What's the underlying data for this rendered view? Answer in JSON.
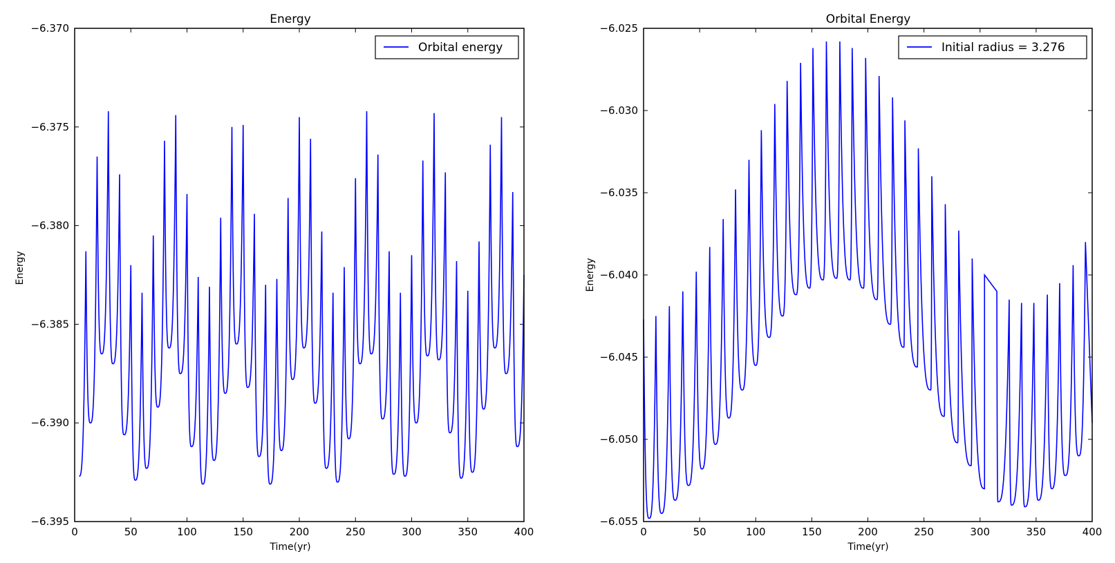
{
  "figure_colors": {
    "series": "#0000ff",
    "axes": "#000000",
    "background": "#ffffff"
  },
  "chart_data": [
    {
      "type": "line",
      "title": "Energy",
      "xlabel": "Time(yr)",
      "ylabel": "Energy",
      "xlim": [
        0,
        400
      ],
      "ylim": [
        -6.395,
        -6.37
      ],
      "xticks": [
        "0",
        "50",
        "100",
        "150",
        "200",
        "250",
        "300",
        "350",
        "400"
      ],
      "yticks": [
        "−6.395",
        "−6.390",
        "−6.385",
        "−6.380",
        "−6.375",
        "−6.370"
      ],
      "legend": {
        "placement": "top-right",
        "entries": [
          "Orbital energy"
        ]
      },
      "grid": false,
      "series": [
        {
          "name": "Orbital energy",
          "color": "#0000ff",
          "troughs": [
            [
              4,
              -6.3927
            ],
            [
              14,
              -6.39
            ],
            [
              24,
              -6.3865
            ],
            [
              34,
              -6.387
            ],
            [
              44,
              -6.3906
            ],
            [
              54,
              -6.3929
            ],
            [
              64,
              -6.3923
            ],
            [
              74,
              -6.3892
            ],
            [
              84,
              -6.3862
            ],
            [
              94,
              -6.3875
            ],
            [
              104,
              -6.3912
            ],
            [
              114,
              -6.3931
            ],
            [
              124,
              -6.3919
            ],
            [
              134,
              -6.3885
            ],
            [
              144,
              -6.386
            ],
            [
              154,
              -6.3882
            ],
            [
              164,
              -6.3917
            ],
            [
              174,
              -6.3931
            ],
            [
              184,
              -6.3914
            ],
            [
              194,
              -6.3878
            ],
            [
              204,
              -6.3862
            ],
            [
              214,
              -6.389
            ],
            [
              224,
              -6.3923
            ],
            [
              234,
              -6.393
            ],
            [
              244,
              -6.3908
            ],
            [
              254,
              -6.387
            ],
            [
              264,
              -6.3865
            ],
            [
              274,
              -6.3898
            ],
            [
              284,
              -6.3926
            ],
            [
              294,
              -6.3927
            ],
            [
              304,
              -6.39
            ],
            [
              314,
              -6.3866
            ],
            [
              324,
              -6.3868
            ],
            [
              334,
              -6.3905
            ],
            [
              344,
              -6.3928
            ],
            [
              354,
              -6.3925
            ],
            [
              364,
              -6.3893
            ],
            [
              374,
              -6.3862
            ],
            [
              384,
              -6.3875
            ],
            [
              394,
              -6.3912
            ]
          ],
          "peaks": [
            [
              10,
              -6.3813
            ],
            [
              20,
              -6.3765
            ],
            [
              30,
              -6.3742
            ],
            [
              40,
              -6.3774
            ],
            [
              50,
              -6.382
            ],
            [
              60,
              -6.3834
            ],
            [
              70,
              -6.3805
            ],
            [
              80,
              -6.3757
            ],
            [
              90,
              -6.3744
            ],
            [
              100,
              -6.3784
            ],
            [
              110,
              -6.3826
            ],
            [
              120,
              -6.3831
            ],
            [
              130,
              -6.3796
            ],
            [
              140,
              -6.375
            ],
            [
              150,
              -6.3749
            ],
            [
              160,
              -6.3794
            ],
            [
              170,
              -6.383
            ],
            [
              180,
              -6.3827
            ],
            [
              190,
              -6.3786
            ],
            [
              200,
              -6.3745
            ],
            [
              210,
              -6.3756
            ],
            [
              220,
              -6.3803
            ],
            [
              230,
              -6.3834
            ],
            [
              240,
              -6.3821
            ],
            [
              250,
              -6.3776
            ],
            [
              260,
              -6.3742
            ],
            [
              270,
              -6.3764
            ],
            [
              280,
              -6.3813
            ],
            [
              290,
              -6.3834
            ],
            [
              300,
              -6.3815
            ],
            [
              310,
              -6.3767
            ],
            [
              320,
              -6.3743
            ],
            [
              330,
              -6.3773
            ],
            [
              340,
              -6.3818
            ],
            [
              350,
              -6.3833
            ],
            [
              360,
              -6.3808
            ],
            [
              370,
              -6.3759
            ],
            [
              380,
              -6.3745
            ],
            [
              390,
              -6.3783
            ],
            [
              400,
              -6.3825
            ]
          ]
        }
      ]
    },
    {
      "type": "line",
      "title": "Orbital Energy",
      "xlabel": "Time(yr)",
      "ylabel": "Energy",
      "xlim": [
        0,
        400
      ],
      "ylim": [
        -6.055,
        -6.025
      ],
      "xticks": [
        "0",
        "50",
        "100",
        "150",
        "200",
        "250",
        "300",
        "350",
        "400"
      ],
      "yticks": [
        "−6.055",
        "−6.050",
        "−6.045",
        "−6.040",
        "−6.035",
        "−6.030",
        "−6.025"
      ],
      "legend": {
        "placement": "top-right",
        "entries": [
          "Initial radius = 3.276"
        ]
      },
      "grid": false,
      "series": [
        {
          "name": "Initial radius = 3.276",
          "color": "#0000ff",
          "troughs": [
            [
              5,
              -6.0548
            ],
            [
              16,
              -6.0545
            ],
            [
              28,
              -6.0537
            ],
            [
              40,
              -6.0528
            ],
            [
              52,
              -6.0518
            ],
            [
              64,
              -6.0503
            ],
            [
              76,
              -6.0487
            ],
            [
              88,
              -6.047
            ],
            [
              100,
              -6.0455
            ],
            [
              112,
              -6.0438
            ],
            [
              124,
              -6.0425
            ],
            [
              136,
              -6.0412
            ],
            [
              148,
              -6.0408
            ],
            [
              160,
              -6.0403
            ],
            [
              172,
              -6.0402
            ],
            [
              184,
              -6.0403
            ],
            [
              196,
              -6.0408
            ],
            [
              208,
              -6.0415
            ],
            [
              220,
              -6.043
            ],
            [
              232,
              -6.0444
            ],
            [
              244,
              -6.0456
            ],
            [
              256,
              -6.047
            ],
            [
              268,
              -6.0486
            ],
            [
              280,
              -6.0502
            ],
            [
              292,
              -6.0516
            ],
            [
              304,
              -6.053
            ],
            [
              316,
              -6.0538
            ],
            [
              328,
              -6.054
            ],
            [
              340,
              -6.0541
            ],
            [
              352,
              -6.0537
            ],
            [
              364,
              -6.053
            ],
            [
              376,
              -6.0522
            ],
            [
              388,
              -6.051
            ]
          ],
          "peaks": [
            [
              0,
              -6.0427
            ],
            [
              11,
              -6.0425
            ],
            [
              23,
              -6.0419
            ],
            [
              35,
              -6.041
            ],
            [
              47,
              -6.0398
            ],
            [
              59,
              -6.0383
            ],
            [
              71,
              -6.0366
            ],
            [
              82,
              -6.0348
            ],
            [
              94,
              -6.033
            ],
            [
              105,
              -6.0312
            ],
            [
              117,
              -6.0296
            ],
            [
              128,
              -6.0282
            ],
            [
              140,
              -6.0271
            ],
            [
              151,
              -6.0262
            ],
            [
              163,
              -6.0258
            ],
            [
              175,
              -6.0258
            ],
            [
              186,
              -6.0262
            ],
            [
              198,
              -6.0268
            ],
            [
              210,
              -6.0279
            ],
            [
              222,
              -6.0292
            ],
            [
              233,
              -6.0306
            ],
            [
              245,
              -6.0323
            ],
            [
              257,
              -6.034
            ],
            [
              269,
              -6.0357
            ],
            [
              281,
              -6.0373
            ],
            [
              293,
              -6.039
            ],
            [
              304,
              -6.04
            ],
            [
              315,
              -6.041
            ],
            [
              326,
              -6.0415
            ],
            [
              337,
              -6.0417
            ],
            [
              348,
              -6.0417
            ],
            [
              360,
              -6.0412
            ],
            [
              371,
              -6.0405
            ],
            [
              383,
              -6.0394
            ],
            [
              394,
              -6.038
            ],
            [
              400,
              -6.049
            ]
          ]
        }
      ]
    }
  ]
}
